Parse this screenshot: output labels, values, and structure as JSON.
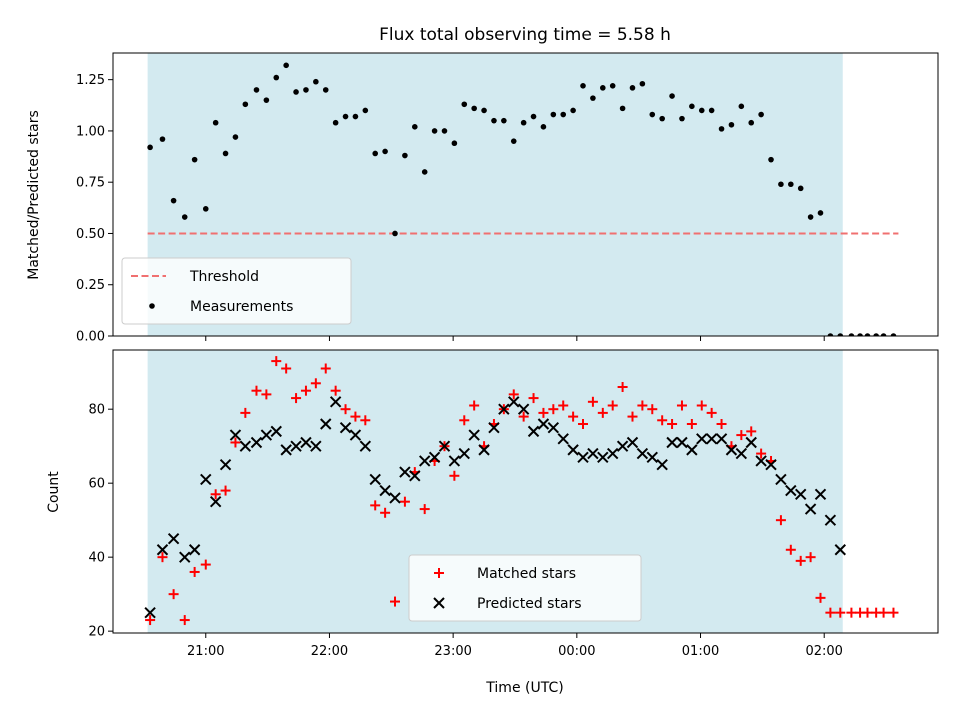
{
  "chart_data": [
    {
      "type": "scatter",
      "title": "Flux total observing time = 5.58 h",
      "xlabel": "",
      "ylabel": "Matched/Predicted stars",
      "ylim": [
        0,
        1.38
      ],
      "yticks": [
        "0.00",
        "0.25",
        "0.50",
        "0.75",
        "1.00",
        "1.25"
      ],
      "xlim": [
        -0.75,
        5.92
      ],
      "xticks_hours": [
        0,
        1,
        2,
        3,
        4,
        5
      ],
      "shaded_span": [
        -0.47,
        5.15
      ],
      "shade_color": "#d3eaf0",
      "threshold": {
        "name": "Threshold",
        "value": 0.5,
        "x": [
          -0.47,
          5.6
        ],
        "color": "#f07070"
      },
      "legend": {
        "placement": "lower-left",
        "entries": [
          "Threshold",
          "Measurements"
        ]
      },
      "series": [
        {
          "name": "Measurements",
          "color": "#000000",
          "x": [
            -0.45,
            -0.35,
            -0.26,
            -0.17,
            -0.09,
            0.0,
            0.08,
            0.16,
            0.24,
            0.32,
            0.41,
            0.49,
            0.57,
            0.65,
            0.73,
            0.81,
            0.89,
            0.97,
            1.05,
            1.13,
            1.21,
            1.29,
            1.37,
            1.45,
            1.53,
            1.61,
            1.69,
            1.77,
            1.85,
            1.93,
            2.01,
            2.09,
            2.17,
            2.25,
            2.33,
            2.41,
            2.49,
            2.57,
            2.65,
            2.73,
            2.81,
            2.89,
            2.97,
            3.05,
            3.13,
            3.21,
            3.29,
            3.37,
            3.45,
            3.53,
            3.61,
            3.69,
            3.77,
            3.85,
            3.93,
            4.01,
            4.09,
            4.17,
            4.25,
            4.33,
            4.41,
            4.49,
            4.57,
            4.65,
            4.73,
            4.81,
            4.89,
            4.97,
            5.05,
            5.13,
            5.22,
            5.29,
            5.35,
            5.42,
            5.48,
            5.56
          ],
          "y": [
            0.92,
            0.96,
            0.66,
            0.58,
            0.86,
            0.62,
            1.04,
            0.89,
            0.97,
            1.13,
            1.2,
            1.15,
            1.26,
            1.32,
            1.19,
            1.2,
            1.24,
            1.2,
            1.04,
            1.07,
            1.07,
            1.1,
            0.89,
            0.9,
            0.5,
            0.88,
            1.02,
            0.8,
            1.0,
            1.0,
            0.94,
            1.13,
            1.11,
            1.1,
            1.05,
            1.05,
            0.95,
            1.04,
            1.07,
            1.02,
            1.08,
            1.08,
            1.1,
            1.22,
            1.16,
            1.21,
            1.22,
            1.11,
            1.21,
            1.23,
            1.08,
            1.06,
            1.17,
            1.06,
            1.12,
            1.1,
            1.1,
            1.01,
            1.03,
            1.12,
            1.04,
            1.08,
            0.86,
            0.74,
            0.74,
            0.72,
            0.58,
            0.6,
            0.0,
            0.0,
            0.0,
            0.0,
            0.0,
            0.0,
            0.0,
            0.0
          ]
        }
      ]
    },
    {
      "type": "scatter",
      "title": "",
      "xlabel": "Time (UTC)",
      "ylabel": "Count",
      "ylim": [
        19.5,
        96
      ],
      "yticks": [
        "20",
        "40",
        "60",
        "80"
      ],
      "xlim": [
        -0.75,
        5.92
      ],
      "xticks_hours": [
        0,
        1,
        2,
        3,
        4,
        5
      ],
      "xtick_labels": [
        "21:00",
        "22:00",
        "23:00",
        "00:00",
        "01:00",
        "02:00"
      ],
      "shaded_span": [
        -0.47,
        5.15
      ],
      "shade_color": "#d3eaf0",
      "legend": {
        "placement": "lower-center",
        "entries": [
          "Matched stars",
          "Predicted stars"
        ]
      },
      "series": [
        {
          "name": "Matched stars",
          "marker": "plus",
          "color": "#ff0000",
          "x": [
            -0.45,
            -0.35,
            -0.26,
            -0.17,
            -0.09,
            0.0,
            0.08,
            0.16,
            0.24,
            0.32,
            0.41,
            0.49,
            0.57,
            0.65,
            0.73,
            0.81,
            0.89,
            0.97,
            1.05,
            1.13,
            1.21,
            1.29,
            1.37,
            1.45,
            1.53,
            1.61,
            1.69,
            1.77,
            1.85,
            1.93,
            2.01,
            2.09,
            2.17,
            2.25,
            2.33,
            2.41,
            2.49,
            2.57,
            2.65,
            2.73,
            2.81,
            2.89,
            2.97,
            3.05,
            3.13,
            3.21,
            3.29,
            3.37,
            3.45,
            3.53,
            3.61,
            3.69,
            3.77,
            3.85,
            3.93,
            4.01,
            4.09,
            4.17,
            4.25,
            4.33,
            4.41,
            4.49,
            4.57,
            4.65,
            4.73,
            4.81,
            4.89,
            4.97,
            5.05,
            5.13,
            5.22,
            5.29,
            5.35,
            5.42,
            5.48,
            5.56
          ],
          "y": [
            23,
            40,
            30,
            23,
            36,
            38,
            57,
            58,
            71,
            79,
            85,
            84,
            93,
            91,
            83,
            85,
            87,
            91,
            85,
            80,
            78,
            77,
            54,
            52,
            28,
            55,
            63,
            53,
            66,
            70,
            62,
            77,
            81,
            70,
            76,
            80,
            84,
            78,
            83,
            79,
            80,
            81,
            78,
            76,
            82,
            79,
            81,
            86,
            78,
            81,
            80,
            77,
            76,
            81,
            76,
            81,
            79,
            76,
            70,
            73,
            74,
            68,
            66,
            50,
            42,
            39,
            40,
            29,
            25,
            25,
            25,
            25,
            25,
            25,
            25,
            25
          ]
        },
        {
          "name": "Predicted stars",
          "marker": "x",
          "color": "#000000",
          "x": [
            -0.45,
            -0.35,
            -0.26,
            -0.17,
            -0.09,
            0.0,
            0.08,
            0.16,
            0.24,
            0.32,
            0.41,
            0.49,
            0.57,
            0.65,
            0.73,
            0.81,
            0.89,
            0.97,
            1.05,
            1.13,
            1.21,
            1.29,
            1.37,
            1.45,
            1.53,
            1.61,
            1.69,
            1.77,
            1.85,
            1.93,
            2.01,
            2.09,
            2.17,
            2.25,
            2.33,
            2.41,
            2.49,
            2.57,
            2.65,
            2.73,
            2.81,
            2.89,
            2.97,
            3.05,
            3.13,
            3.21,
            3.29,
            3.37,
            3.45,
            3.53,
            3.61,
            3.69,
            3.77,
            3.85,
            3.93,
            4.01,
            4.09,
            4.17,
            4.25,
            4.33,
            4.41,
            4.49,
            4.57,
            4.65,
            4.73,
            4.81,
            4.89,
            4.97,
            5.05,
            5.13
          ],
          "y": [
            25,
            42,
            45,
            40,
            42,
            61,
            55,
            65,
            73,
            70,
            71,
            73,
            74,
            69,
            70,
            71,
            70,
            76,
            82,
            75,
            73,
            70,
            61,
            58,
            56,
            63,
            62,
            66,
            67,
            70,
            66,
            68,
            73,
            69,
            75,
            80,
            82,
            80,
            74,
            76,
            75,
            72,
            69,
            67,
            68,
            67,
            68,
            70,
            71,
            68,
            67,
            65,
            71,
            71,
            69,
            72,
            72,
            72,
            69,
            68,
            71,
            66,
            65,
            61,
            58,
            57,
            53,
            57,
            50,
            42
          ]
        }
      ]
    }
  ]
}
